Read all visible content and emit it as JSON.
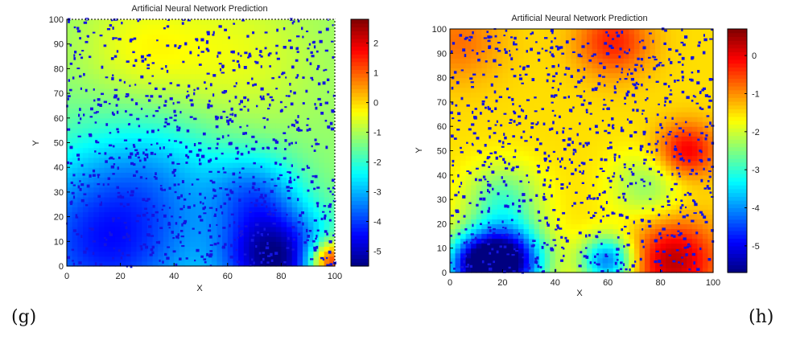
{
  "panel_labels": [
    "(g)",
    "(h)"
  ],
  "chart_data": [
    {
      "type": "heatmap",
      "title": "Artificial Neural Network Prediction",
      "xlabel": "X",
      "ylabel": "Y",
      "xlim": [
        0,
        100
      ],
      "ylim": [
        0,
        100
      ],
      "xticks": [
        0,
        20,
        40,
        60,
        80,
        100
      ],
      "yticks": [
        0,
        10,
        20,
        30,
        40,
        50,
        60,
        70,
        80,
        90,
        100
      ],
      "colorbar": {
        "ticks": [
          2,
          1,
          0,
          -1,
          -2,
          -3,
          -4,
          -5
        ],
        "range": [
          -5.5,
          2.8
        ],
        "colormap": "jet"
      },
      "field_features": [
        {
          "x": 78,
          "y": 3,
          "value": -5.3,
          "spread": 14
        },
        {
          "x": 15,
          "y": 10,
          "value": -4.3,
          "spread": 26
        },
        {
          "x": 70,
          "y": 30,
          "value": -3.0,
          "spread": 12
        },
        {
          "x": 98,
          "y": 2,
          "value": 2.5,
          "spread": 6
        },
        {
          "x": 63,
          "y": 85,
          "value": -0.5,
          "spread": 20
        },
        {
          "x": 28,
          "y": 88,
          "value": -0.4,
          "spread": 16
        },
        {
          "x": 35,
          "y": 40,
          "value": -2.0,
          "spread": 18
        }
      ],
      "field_base": -1.2,
      "overlay": {
        "color": "#1414e0",
        "marker": "dots"
      }
    },
    {
      "type": "heatmap",
      "title": "Artificial Neural Network Prediction",
      "xlabel": "X",
      "ylabel": "Y",
      "xlim": [
        0,
        100
      ],
      "ylim": [
        0,
        100
      ],
      "xticks": [
        0,
        20,
        40,
        60,
        80,
        100
      ],
      "yticks": [
        0,
        10,
        20,
        30,
        40,
        50,
        60,
        70,
        80,
        90,
        100
      ],
      "colorbar": {
        "ticks": [
          0,
          -1,
          -2,
          -3,
          -4,
          -5
        ],
        "range": [
          -5.7,
          0.7
        ],
        "colormap": "jet"
      },
      "field_features": [
        {
          "x": 22,
          "y": 5,
          "value": -5.4,
          "spread": 10
        },
        {
          "x": 10,
          "y": 3,
          "value": -4.6,
          "spread": 9
        },
        {
          "x": 60,
          "y": 5,
          "value": -4.2,
          "spread": 7
        },
        {
          "x": 90,
          "y": 50,
          "value": 0.0,
          "spread": 8
        },
        {
          "x": 62,
          "y": 95,
          "value": -0.3,
          "spread": 10
        },
        {
          "x": 85,
          "y": 5,
          "value": 0.3,
          "spread": 12
        },
        {
          "x": 3,
          "y": 95,
          "value": -0.8,
          "spread": 12
        },
        {
          "x": 20,
          "y": 30,
          "value": -2.8,
          "spread": 10
        },
        {
          "x": 75,
          "y": 35,
          "value": -2.4,
          "spread": 10
        }
      ],
      "field_base": -1.5,
      "overlay": {
        "color": "#1414e0",
        "marker": "dots"
      }
    }
  ]
}
